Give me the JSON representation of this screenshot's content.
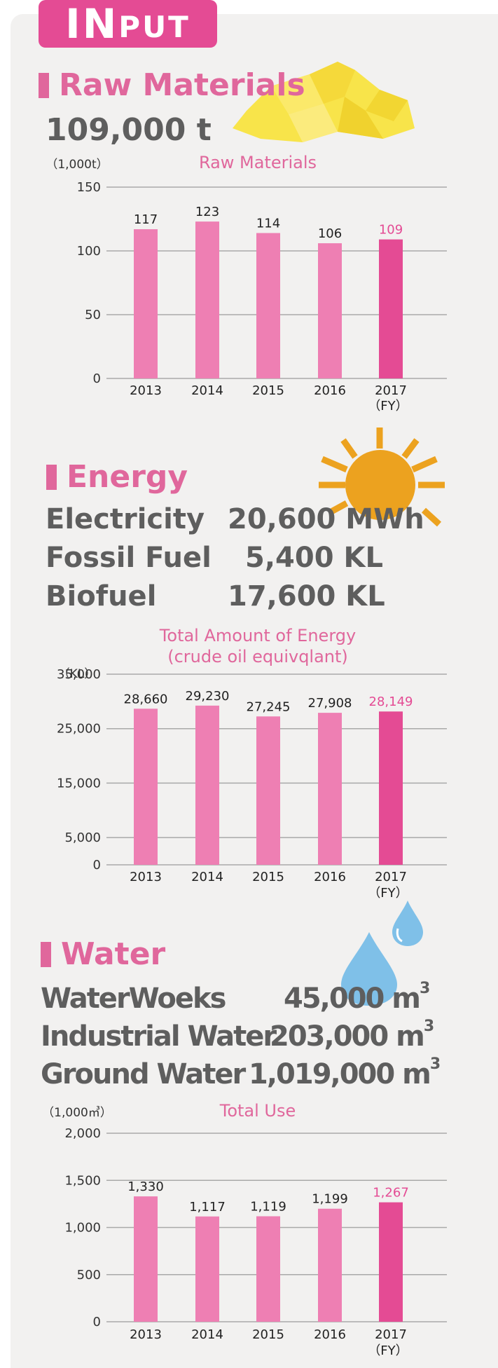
{
  "header": {
    "badge_big": "IN",
    "badge_small": "PUT"
  },
  "raw": {
    "title": "Raw Materials",
    "total": "109,000 t"
  },
  "energy": {
    "title": "Energy",
    "rows": [
      {
        "label": "Electricity",
        "value": "20,600",
        "unit": "MWh"
      },
      {
        "label": "Fossil Fuel",
        "value": "5,400",
        "unit": "KL"
      },
      {
        "label": "Biofuel",
        "value": "17,600",
        "unit": "KL"
      }
    ]
  },
  "water": {
    "title": "Water",
    "rows": [
      {
        "label": "WaterWoeks",
        "value": "45,000",
        "unit": "m",
        "unit_sup": "3"
      },
      {
        "label": "Industrial Water",
        "value": "203,000",
        "unit": "m",
        "unit_sup": "3"
      },
      {
        "label": "Ground Water",
        "value": "1,019,000",
        "unit": "m",
        "unit_sup": "3"
      }
    ]
  },
  "colors": {
    "bar": "#ee7fb3",
    "highlight": "#e44b94",
    "accent_text": "#e0679c",
    "grid": "#a9a9a9",
    "sun": "#eca21f",
    "drop": "#7fc0e8",
    "gem": "#f8e44a"
  },
  "icons": {
    "raw": "gem-icon",
    "energy": "sun-icon",
    "water": "water-drop-icon"
  },
  "chart_data": [
    {
      "type": "bar",
      "title": "Raw Materials",
      "unit_label": "（1,000t）",
      "categories": [
        "2013",
        "2014",
        "2015",
        "2016",
        "2017"
      ],
      "fy_label": "（FY）",
      "values": [
        117,
        123,
        114,
        106,
        109
      ],
      "value_labels": [
        "117",
        "123",
        "114",
        "106",
        "109"
      ],
      "ylim": [
        0,
        150
      ],
      "yticks": [
        0,
        50,
        100,
        150
      ],
      "ytick_labels": [
        "0",
        "50",
        "100",
        "150"
      ],
      "highlight_last": true
    },
    {
      "type": "bar",
      "title": "Total Amount of Energy",
      "subtitle": "(crude oil equivqlant)",
      "unit_label": "（KL）",
      "categories": [
        "2013",
        "2014",
        "2015",
        "2016",
        "2017"
      ],
      "fy_label": "（FY）",
      "values": [
        28660,
        29230,
        27245,
        27908,
        28149
      ],
      "value_labels": [
        "28,660",
        "29,230",
        "27,245",
        "27,908",
        "28,149"
      ],
      "ylim": [
        0,
        35000
      ],
      "yticks": [
        0,
        5000,
        15000,
        25000,
        35000
      ],
      "ytick_labels": [
        "0",
        "5,000",
        "15,000",
        "25,000",
        "35,000"
      ],
      "highlight_last": true
    },
    {
      "type": "bar",
      "title": "Total Use",
      "unit_label": "（1,000㎥）",
      "categories": [
        "2013",
        "2014",
        "2015",
        "2016",
        "2017"
      ],
      "fy_label": "（FY）",
      "values": [
        1330,
        1117,
        1119,
        1199,
        1267
      ],
      "value_labels": [
        "1,330",
        "1,117",
        "1,119",
        "1,199",
        "1,267"
      ],
      "ylim": [
        0,
        2000
      ],
      "yticks": [
        0,
        500,
        1000,
        1500,
        2000
      ],
      "ytick_labels": [
        "0",
        "500",
        "1,000",
        "1,500",
        "2,000"
      ],
      "highlight_last": true
    }
  ]
}
